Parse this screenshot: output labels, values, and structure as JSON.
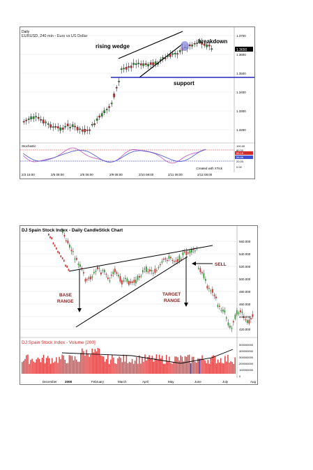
{
  "chart1": {
    "header": "EURUSD, 240 min - Euro vs US Dollar",
    "small_tag": "Daily",
    "annotations": {
      "wedge": "rising wedge",
      "breakdown": "breakdown",
      "support": "support"
    },
    "price_ticks": [
      "1.3700",
      "1.3600",
      "1.3500",
      "1.3400",
      "1.3300",
      "1.3200"
    ],
    "last_price": "1.3650",
    "osc_title": "Stochastic",
    "osc_ticks": [
      "100.00",
      "80.00",
      "20.00",
      "0.00"
    ],
    "osc_markers": [
      "68.18",
      "58.86"
    ],
    "credit": "Created with XTick",
    "x_ticks": [
      "2/3 16:00",
      "2/5 08:00",
      "2/6 08:00",
      "2/9 08:00",
      "2/10 08:00",
      "2/11 08:00",
      "2/12 08:00"
    ]
  },
  "chart2": {
    "title": "DJ Spain Stock Index - Daily CandleStick Chart",
    "labels": {
      "base": "BASE\nRANGE",
      "target": "TARGET\nRANGE",
      "sell": "SELL"
    },
    "price_ticks": [
      "560.000",
      "540.000",
      "520.000",
      "500.000",
      "480.000",
      "460.000",
      "440.000",
      "420.000"
    ],
    "volume_title": "DJ Spain Stock Index - Volume [200]",
    "volume_ticks": [
      "500000000",
      "400000000",
      "300000000",
      "200000000",
      "100000000",
      "0"
    ],
    "months": [
      "December",
      "2008",
      "February",
      "March",
      "April",
      "May",
      "June",
      "July",
      "Aug"
    ]
  },
  "colors": {
    "up": "#2e9e2e",
    "down": "#d22b2b",
    "support": "#2222bb",
    "vol": "#e04040",
    "osc1": "#c050c0",
    "osc2": "#4050d0"
  }
}
